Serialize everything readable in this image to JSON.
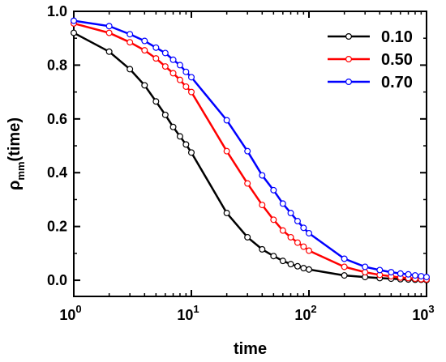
{
  "chart_data": {
    "type": "line",
    "title": "",
    "xlabel": "time",
    "ylabel": {
      "main": "ρ",
      "subscript": "mm",
      "suffix": "(time)"
    },
    "x_scale": "log",
    "xlim": [
      1,
      1000
    ],
    "ylim": [
      -0.06,
      1.0
    ],
    "x_ticks": [
      {
        "value": 1,
        "base": "10",
        "exp": "0"
      },
      {
        "value": 10,
        "base": "10",
        "exp": "1"
      },
      {
        "value": 100,
        "base": "10",
        "exp": "2"
      },
      {
        "value": 1000,
        "base": "10",
        "exp": "3"
      }
    ],
    "y_ticks": [
      {
        "value": 0.0,
        "label": "0.0"
      },
      {
        "value": 0.2,
        "label": "0.2"
      },
      {
        "value": 0.4,
        "label": "0.4"
      },
      {
        "value": 0.6,
        "label": "0.6"
      },
      {
        "value": 0.8,
        "label": "0.8"
      },
      {
        "value": 1.0,
        "label": "1.0"
      }
    ],
    "y_minor_ticks": [
      0.1,
      0.3,
      0.5,
      0.7,
      0.9
    ],
    "grid": false,
    "legend_position": "top-right",
    "series": [
      {
        "name": "0.10",
        "color": "#000000",
        "x": [
          1,
          2,
          3,
          4,
          5,
          6,
          7,
          8,
          9,
          10,
          20,
          30,
          40,
          50,
          60,
          70,
          80,
          90,
          100,
          200,
          300,
          400,
          500,
          600,
          700,
          800,
          900,
          1000
        ],
        "y": [
          0.92,
          0.85,
          0.785,
          0.725,
          0.665,
          0.615,
          0.57,
          0.535,
          0.505,
          0.475,
          0.25,
          0.16,
          0.115,
          0.09,
          0.072,
          0.06,
          0.052,
          0.045,
          0.04,
          0.018,
          0.012,
          0.008,
          0.006,
          0.004,
          0.003,
          0.002,
          0.002,
          0.001
        ]
      },
      {
        "name": "0.50",
        "color": "#ff0000",
        "x": [
          1,
          2,
          3,
          4,
          5,
          6,
          7,
          8,
          9,
          10,
          20,
          30,
          40,
          50,
          60,
          70,
          80,
          90,
          100,
          200,
          300,
          400,
          500,
          600,
          700,
          800,
          900,
          1000
        ],
        "y": [
          0.955,
          0.92,
          0.885,
          0.855,
          0.825,
          0.795,
          0.77,
          0.745,
          0.72,
          0.7,
          0.48,
          0.36,
          0.28,
          0.225,
          0.185,
          0.16,
          0.14,
          0.125,
          0.11,
          0.05,
          0.03,
          0.02,
          0.015,
          0.01,
          0.008,
          0.006,
          0.004,
          0.003
        ]
      },
      {
        "name": "0.70",
        "color": "#0000ff",
        "x": [
          1,
          2,
          3,
          4,
          5,
          6,
          7,
          8,
          9,
          10,
          20,
          30,
          40,
          50,
          60,
          70,
          80,
          90,
          100,
          200,
          300,
          400,
          500,
          600,
          700,
          800,
          900,
          1000
        ],
        "y": [
          0.965,
          0.945,
          0.915,
          0.89,
          0.865,
          0.845,
          0.82,
          0.8,
          0.775,
          0.755,
          0.595,
          0.48,
          0.39,
          0.335,
          0.285,
          0.25,
          0.22,
          0.195,
          0.175,
          0.08,
          0.05,
          0.038,
          0.03,
          0.025,
          0.022,
          0.018,
          0.015,
          0.012
        ]
      }
    ]
  }
}
